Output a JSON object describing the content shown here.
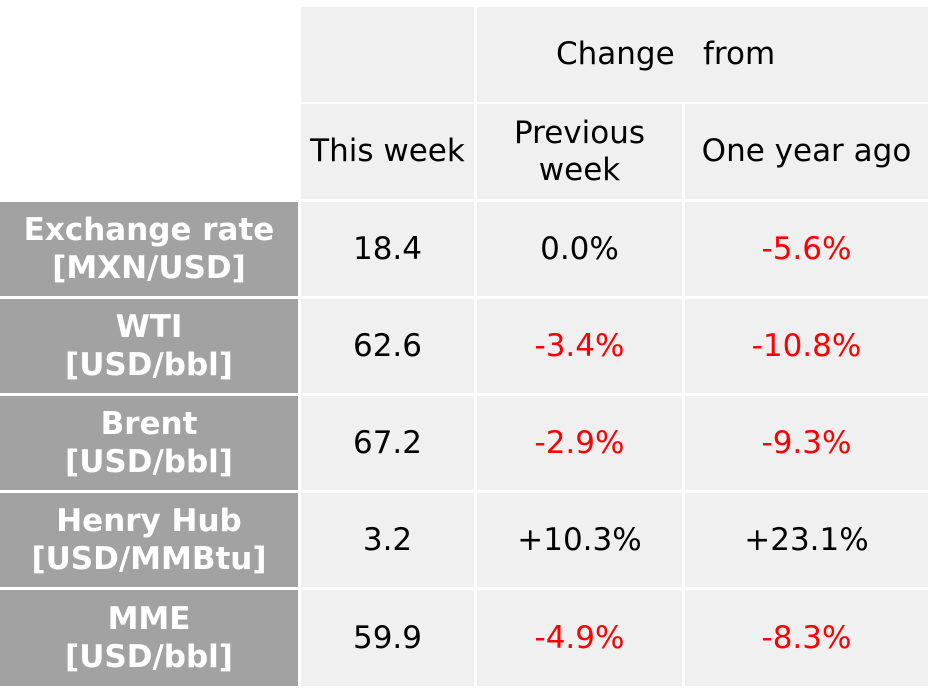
{
  "header": {
    "change_word": "Change",
    "from_word": "from",
    "this_week": "This week",
    "previous_week_line1": "Previous",
    "previous_week_line2": "week",
    "one_year_ago": "One year ago"
  },
  "rows": [
    {
      "label_line1": "Exchange rate",
      "label_line2": "[MXN/USD]",
      "this_week": "18.4",
      "prev_week": "0.0%",
      "year_ago": "-5.6%"
    },
    {
      "label_line1": "WTI",
      "label_line2": "[USD/bbl]",
      "this_week": "62.6",
      "prev_week": "-3.4%",
      "year_ago": "-10.8%"
    },
    {
      "label_line1": "Brent",
      "label_line2": "[USD/bbl]",
      "this_week": "67.2",
      "prev_week": "-2.9%",
      "year_ago": "-9.3%"
    },
    {
      "label_line1": "Henry Hub",
      "label_line2": "[USD/MMBtu]",
      "this_week": "3.2",
      "prev_week": "+10.3%",
      "year_ago": "+23.1%"
    },
    {
      "label_line1": "MME",
      "label_line2": "[USD/bbl]",
      "this_week": "59.9",
      "prev_week": "-4.9%",
      "year_ago": "-8.3%"
    }
  ],
  "colors": {
    "cell_background": "#f0f0f0",
    "row_header_background": "#a2a2a2",
    "negative_text": "#ff0000",
    "positive_text": "#000000"
  }
}
